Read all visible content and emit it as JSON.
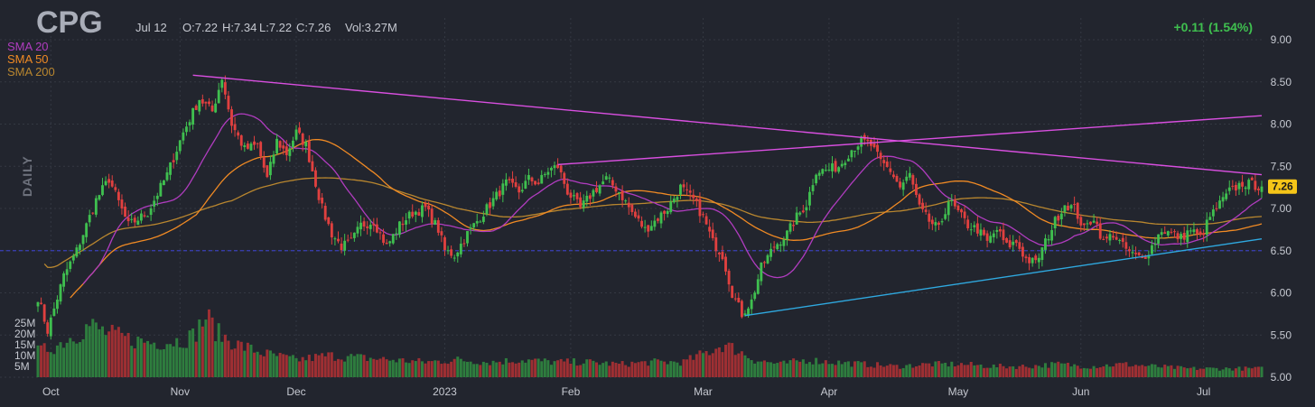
{
  "header": {
    "ticker": "CPG",
    "date": "Jul 12",
    "open": "O:7.22",
    "high": "H:7.34",
    "low": "L:7.22",
    "close": "C:7.26",
    "volume": "Vol:3.27M",
    "change": "+0.11 (1.54%)",
    "period": "DAILY"
  },
  "colors": {
    "background": "#22252e",
    "up": "#3fbf4f",
    "down": "#e0403f",
    "sma20": "#b03cbf",
    "sma50": "#f08a24",
    "sma200": "#b8862f",
    "trendline_upper": "#d94fe0",
    "trendline_lower": "#2fa9e0",
    "support": "#3a3fb8",
    "badge": "#f5c518"
  },
  "chart_data": {
    "type": "candlestick",
    "title": "CPG",
    "legend": [
      {
        "name": "SMA 20",
        "color": "#b03cbf"
      },
      {
        "name": "SMA 50",
        "color": "#f08a24"
      },
      {
        "name": "SMA 200",
        "color": "#b8862f"
      }
    ],
    "legend_position": "top-left",
    "y_axis": {
      "side": "right",
      "ticks": [
        "9.00",
        "8.50",
        "8.00",
        "7.50",
        "7.00",
        "6.50",
        "6.00",
        "5.50",
        "5.00"
      ],
      "range": [
        5.0,
        9.0
      ]
    },
    "volume_axis": {
      "ticks": [
        "25M",
        "20M",
        "15M",
        "10M",
        "5M"
      ]
    },
    "x_axis": {
      "ticks": [
        "Oct",
        "Nov",
        "Dec",
        "2023",
        "Feb",
        "Mar",
        "Apr",
        "May",
        "Jun",
        "Jul"
      ],
      "tick_index": [
        4,
        44,
        80,
        126,
        165,
        206,
        245,
        285,
        323,
        361
      ]
    },
    "last_price": "7.26",
    "support_level": 6.5,
    "trendlines": [
      {
        "name": "upper-falling",
        "from": {
          "i": 48,
          "v": 8.58
        },
        "to": {
          "i": 379,
          "v": 7.4
        }
      },
      {
        "name": "upper-rising",
        "from": {
          "i": 161,
          "v": 7.52
        },
        "to": {
          "i": 379,
          "v": 8.1
        }
      },
      {
        "name": "lower-rising",
        "from": {
          "i": 219,
          "v": 5.73
        },
        "to": {
          "i": 379,
          "v": 6.64
        }
      }
    ],
    "n_bars": 380,
    "keypoints": [
      [
        0,
        5.95
      ],
      [
        3,
        5.55
      ],
      [
        8,
        6.2
      ],
      [
        12,
        6.5
      ],
      [
        18,
        7.1
      ],
      [
        22,
        7.35
      ],
      [
        28,
        6.8
      ],
      [
        34,
        6.95
      ],
      [
        40,
        7.4
      ],
      [
        45,
        7.9
      ],
      [
        50,
        8.3
      ],
      [
        54,
        8.15
      ],
      [
        57,
        8.55
      ],
      [
        60,
        8.0
      ],
      [
        64,
        7.7
      ],
      [
        68,
        7.75
      ],
      [
        71,
        7.35
      ],
      [
        74,
        7.8
      ],
      [
        77,
        7.65
      ],
      [
        80,
        7.9
      ],
      [
        83,
        7.75
      ],
      [
        86,
        7.3
      ],
      [
        88,
        7.0
      ],
      [
        91,
        6.7
      ],
      [
        94,
        6.55
      ],
      [
        97,
        6.6
      ],
      [
        100,
        6.8
      ],
      [
        104,
        6.85
      ],
      [
        108,
        6.55
      ],
      [
        112,
        6.8
      ],
      [
        116,
        6.95
      ],
      [
        120,
        7.0
      ],
      [
        124,
        6.75
      ],
      [
        126,
        6.5
      ],
      [
        129,
        6.45
      ],
      [
        133,
        6.7
      ],
      [
        137,
        6.9
      ],
      [
        141,
        7.1
      ],
      [
        145,
        7.3
      ],
      [
        149,
        7.2
      ],
      [
        152,
        7.35
      ],
      [
        155,
        7.3
      ],
      [
        158,
        7.45
      ],
      [
        161,
        7.5
      ],
      [
        164,
        7.2
      ],
      [
        168,
        7.0
      ],
      [
        172,
        7.2
      ],
      [
        176,
        7.35
      ],
      [
        180,
        7.2
      ],
      [
        184,
        6.95
      ],
      [
        188,
        6.75
      ],
      [
        191,
        6.85
      ],
      [
        195,
        7.0
      ],
      [
        199,
        7.25
      ],
      [
        203,
        7.1
      ],
      [
        206,
        6.9
      ],
      [
        209,
        6.6
      ],
      [
        212,
        6.45
      ],
      [
        215,
        6.0
      ],
      [
        218,
        5.75
      ],
      [
        221,
        5.9
      ],
      [
        224,
        6.3
      ],
      [
        228,
        6.55
      ],
      [
        232,
        6.7
      ],
      [
        235,
        6.9
      ],
      [
        238,
        7.05
      ],
      [
        241,
        7.45
      ],
      [
        244,
        7.45
      ],
      [
        248,
        7.5
      ],
      [
        252,
        7.7
      ],
      [
        255,
        7.8
      ],
      [
        258,
        7.75
      ],
      [
        261,
        7.55
      ],
      [
        264,
        7.45
      ],
      [
        267,
        7.25
      ],
      [
        270,
        7.4
      ],
      [
        273,
        7.0
      ],
      [
        276,
        6.85
      ],
      [
        279,
        6.75
      ],
      [
        282,
        7.1
      ],
      [
        285,
        6.95
      ],
      [
        288,
        6.8
      ],
      [
        291,
        6.75
      ],
      [
        294,
        6.6
      ],
      [
        297,
        6.75
      ],
      [
        300,
        6.55
      ],
      [
        303,
        6.6
      ],
      [
        306,
        6.4
      ],
      [
        309,
        6.35
      ],
      [
        312,
        6.6
      ],
      [
        315,
        6.85
      ],
      [
        318,
        7.05
      ],
      [
        321,
        7.0
      ],
      [
        324,
        6.75
      ],
      [
        327,
        6.9
      ],
      [
        330,
        6.6
      ],
      [
        333,
        6.7
      ],
      [
        336,
        6.55
      ],
      [
        339,
        6.45
      ],
      [
        342,
        6.4
      ],
      [
        345,
        6.55
      ],
      [
        348,
        6.75
      ],
      [
        351,
        6.7
      ],
      [
        354,
        6.65
      ],
      [
        357,
        6.75
      ],
      [
        360,
        6.65
      ],
      [
        363,
        6.9
      ],
      [
        366,
        7.05
      ],
      [
        369,
        7.2
      ],
      [
        373,
        7.3
      ],
      [
        379,
        7.26
      ]
    ],
    "volume_keypoints": [
      [
        0,
        12
      ],
      [
        5,
        14
      ],
      [
        12,
        20
      ],
      [
        16,
        24
      ],
      [
        22,
        20
      ],
      [
        30,
        17
      ],
      [
        36,
        16
      ],
      [
        44,
        17
      ],
      [
        48,
        19
      ],
      [
        52,
        28
      ],
      [
        56,
        20
      ],
      [
        62,
        15
      ],
      [
        70,
        11
      ],
      [
        80,
        8
      ],
      [
        90,
        10
      ],
      [
        100,
        9
      ],
      [
        110,
        8
      ],
      [
        120,
        7
      ],
      [
        130,
        8
      ],
      [
        140,
        7
      ],
      [
        150,
        8
      ],
      [
        160,
        7
      ],
      [
        170,
        7
      ],
      [
        180,
        6
      ],
      [
        190,
        7
      ],
      [
        200,
        7
      ],
      [
        208,
        12
      ],
      [
        212,
        15
      ],
      [
        216,
        13
      ],
      [
        222,
        8
      ],
      [
        230,
        6
      ],
      [
        238,
        8
      ],
      [
        246,
        7
      ],
      [
        256,
        6
      ],
      [
        266,
        5
      ],
      [
        276,
        6
      ],
      [
        286,
        6
      ],
      [
        296,
        5
      ],
      [
        306,
        5
      ],
      [
        316,
        6
      ],
      [
        326,
        5
      ],
      [
        336,
        6
      ],
      [
        346,
        5
      ],
      [
        356,
        4
      ],
      [
        366,
        4
      ],
      [
        379,
        4
      ]
    ]
  }
}
